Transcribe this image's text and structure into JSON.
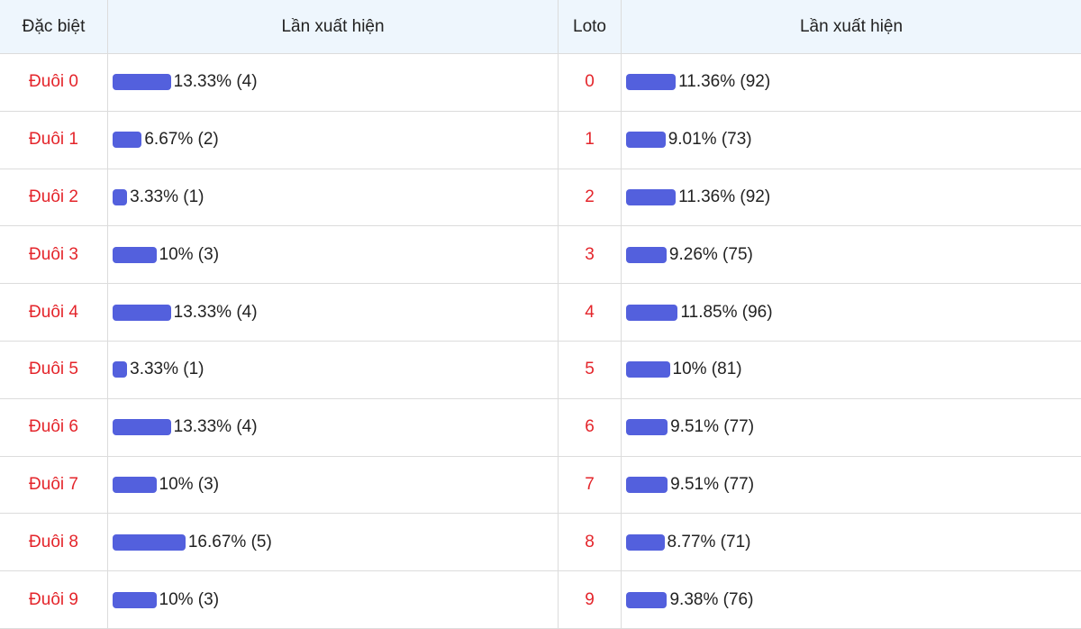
{
  "table": {
    "headers": [
      "Đặc biệt",
      "Lần xuất hiện",
      "Loto",
      "Lần xuất hiện"
    ],
    "special": [
      {
        "label": "Đuôi 0",
        "value": 13.33,
        "value_label": "13.33% (4)"
      },
      {
        "label": "Đuôi 1",
        "value": 6.67,
        "value_label": "6.67% (2)"
      },
      {
        "label": "Đuôi 2",
        "value": 3.33,
        "value_label": "3.33% (1)"
      },
      {
        "label": "Đuôi 3",
        "value": 10,
        "value_label": "10% (3)"
      },
      {
        "label": "Đuôi 4",
        "value": 13.33,
        "value_label": "13.33% (4)"
      },
      {
        "label": "Đuôi 5",
        "value": 3.33,
        "value_label": "3.33% (1)"
      },
      {
        "label": "Đuôi 6",
        "value": 13.33,
        "value_label": "13.33% (4)"
      },
      {
        "label": "Đuôi 7",
        "value": 10,
        "value_label": "10% (3)"
      },
      {
        "label": "Đuôi 8",
        "value": 16.67,
        "value_label": "16.67% (5)"
      },
      {
        "label": "Đuôi 9",
        "value": 10,
        "value_label": "10% (3)"
      }
    ],
    "loto": [
      {
        "label": "0",
        "value": 11.36,
        "value_label": "11.36% (92)"
      },
      {
        "label": "1",
        "value": 9.01,
        "value_label": "9.01% (73)"
      },
      {
        "label": "2",
        "value": 11.36,
        "value_label": "11.36% (92)"
      },
      {
        "label": "3",
        "value": 9.26,
        "value_label": "9.26% (75)"
      },
      {
        "label": "4",
        "value": 11.85,
        "value_label": "11.85% (96)"
      },
      {
        "label": "5",
        "value": 10,
        "value_label": "10% (81)"
      },
      {
        "label": "6",
        "value": 9.51,
        "value_label": "9.51% (77)"
      },
      {
        "label": "7",
        "value": 9.51,
        "value_label": "9.51% (77)"
      },
      {
        "label": "8",
        "value": 8.77,
        "value_label": "8.77% (71)"
      },
      {
        "label": "9",
        "value": 9.38,
        "value_label": "9.38% (76)"
      }
    ]
  }
}
